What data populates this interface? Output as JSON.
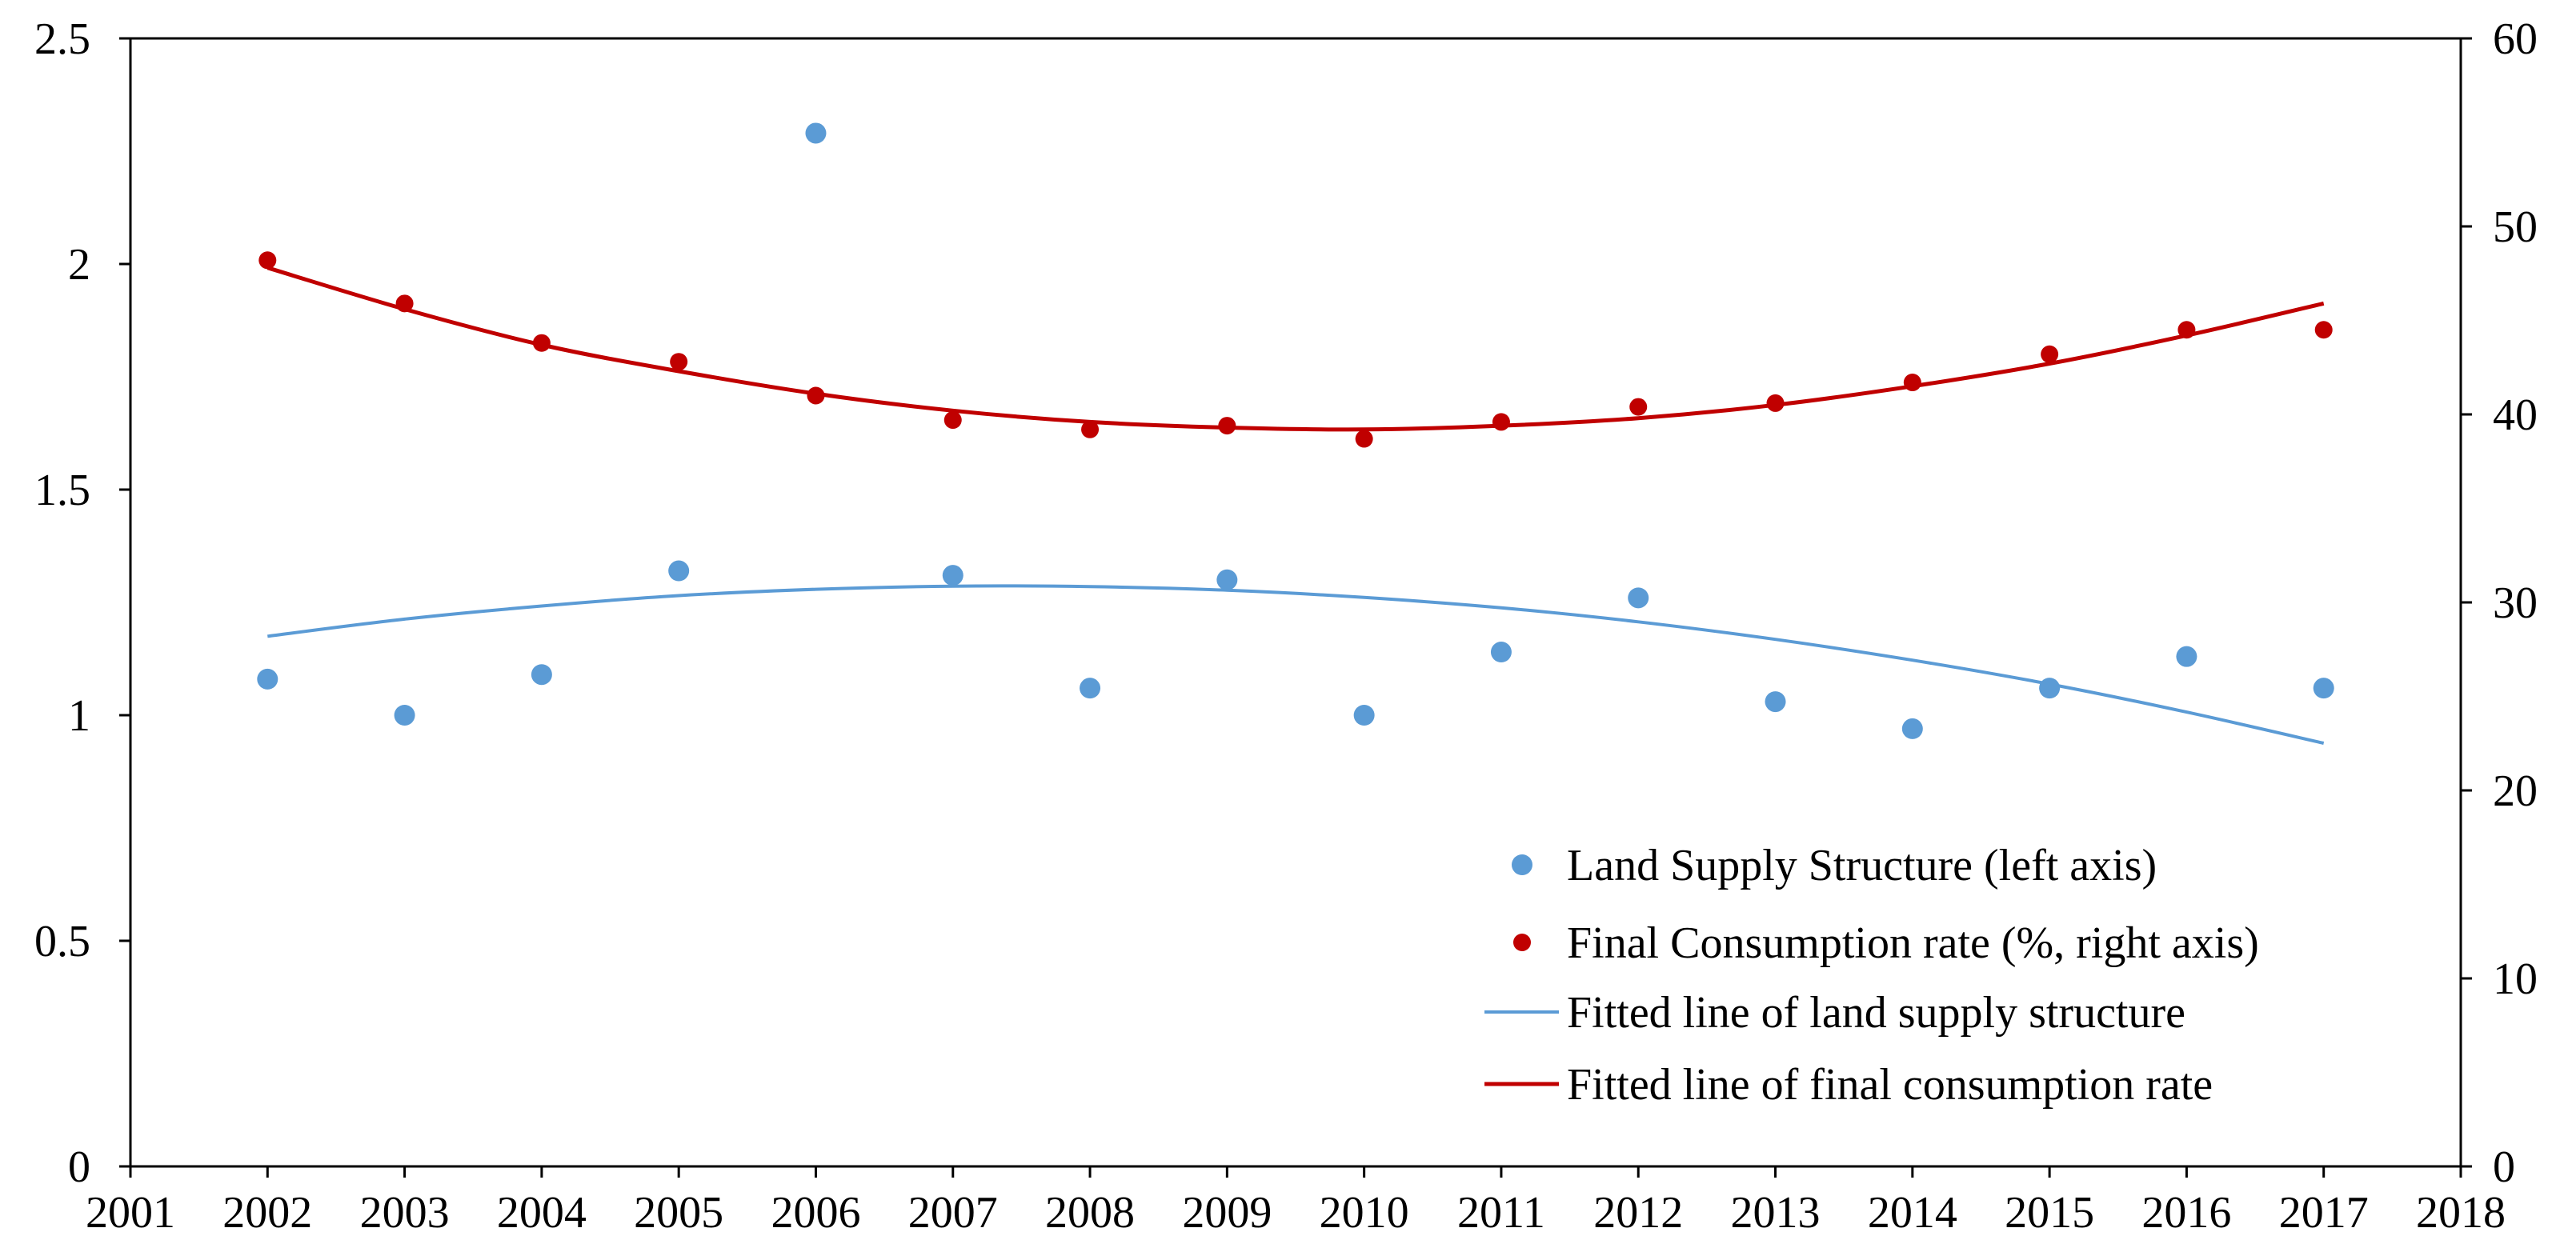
{
  "chart_data": {
    "type": "scatter",
    "title": "",
    "xlabel": "",
    "ylabel": "",
    "y2label": "",
    "xlim": [
      2001,
      2018
    ],
    "ylim": [
      0,
      2.5
    ],
    "y2lim": [
      0,
      60
    ],
    "x_ticks": [
      "2001",
      "2002",
      "2003",
      "2004",
      "2005",
      "2006",
      "2007",
      "2008",
      "2009",
      "2010",
      "2011",
      "2012",
      "2013",
      "2014",
      "2015",
      "2016",
      "2017",
      "2018"
    ],
    "y_ticks": [
      "0",
      "0.5",
      "1",
      "1.5",
      "2",
      "2.5"
    ],
    "y2_ticks": [
      "0",
      "10",
      "20",
      "30",
      "40",
      "50",
      "60"
    ],
    "grid": false,
    "legend_position": "bottom-right",
    "series": [
      {
        "name": "Land Supply Structure (left axis)",
        "kind": "scatter",
        "axis": "left",
        "color": "#5B9BD5",
        "x": [
          2002,
          2003,
          2004,
          2005,
          2006,
          2007,
          2008,
          2009,
          2010,
          2011,
          2012,
          2013,
          2014,
          2015,
          2016,
          2017
        ],
        "values": [
          1.08,
          1.0,
          1.09,
          1.32,
          2.29,
          1.31,
          1.06,
          1.3,
          1.0,
          1.14,
          1.26,
          1.03,
          0.97,
          1.06,
          1.13,
          1.06
        ]
      },
      {
        "name": "Final Consumption rate (%, right axis)",
        "kind": "scatter",
        "axis": "right",
        "color": "#C00000",
        "x": [
          2002,
          2003,
          2004,
          2005,
          2006,
          2007,
          2008,
          2009,
          2010,
          2011,
          2012,
          2013,
          2014,
          2015,
          2016,
          2017
        ],
        "values": [
          48.2,
          45.9,
          43.8,
          42.8,
          41.0,
          39.7,
          39.2,
          39.4,
          38.7,
          39.6,
          40.4,
          40.6,
          41.7,
          43.2,
          44.5,
          44.5
        ]
      },
      {
        "name": "Fitted line of land supply structure",
        "kind": "line",
        "axis": "left",
        "color": "#5B9BD5",
        "fit": "quadratic",
        "x": [
          2002,
          2003,
          2004,
          2005,
          2006,
          2007,
          2008,
          2009,
          2010,
          2011,
          2012,
          2013,
          2014,
          2015,
          2016,
          2017
        ],
        "values": [
          1.175,
          1.213,
          1.242,
          1.265,
          1.279,
          1.286,
          1.285,
          1.277,
          1.261,
          1.238,
          1.207,
          1.168,
          1.122,
          1.069,
          1.007,
          0.938
        ]
      },
      {
        "name": "Fitted line of final consumption rate",
        "kind": "line",
        "axis": "right",
        "color": "#C00000",
        "fit": "quadratic",
        "x": [
          2002,
          2003,
          2004,
          2005,
          2006,
          2007,
          2008,
          2009,
          2010,
          2011,
          2012,
          2013,
          2014,
          2015,
          2016,
          2017
        ],
        "values": [
          47.8,
          45.6,
          43.7,
          42.3,
          41.1,
          40.2,
          39.6,
          39.3,
          39.2,
          39.4,
          39.8,
          40.5,
          41.5,
          42.7,
          44.2,
          45.9
        ]
      }
    ]
  }
}
